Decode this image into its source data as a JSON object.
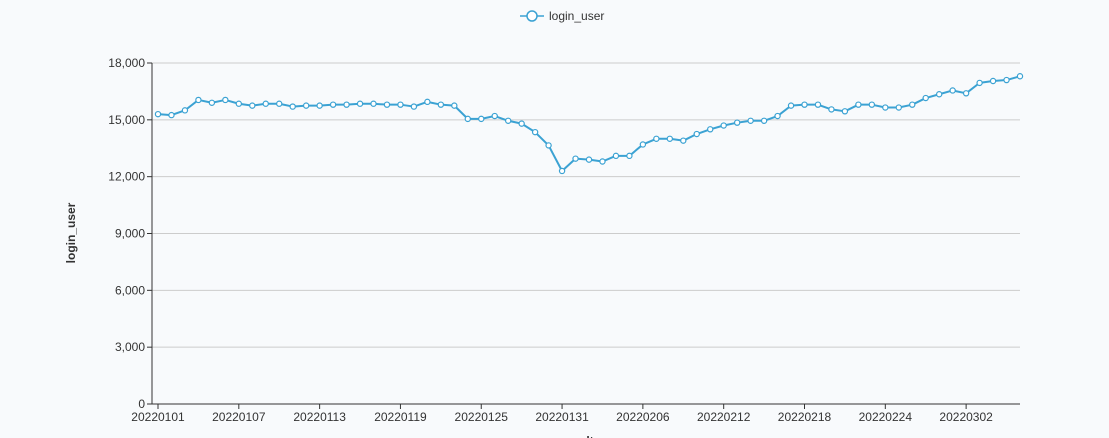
{
  "chart_data": {
    "type": "line",
    "xlabel": "dt",
    "ylabel": "login_user",
    "ylim": [
      0,
      18000
    ],
    "y_ticks": [
      "0",
      "3,000",
      "6,000",
      "9,000",
      "12,000",
      "15,000",
      "18,000"
    ],
    "y_tick_values": [
      0,
      3000,
      6000,
      9000,
      12000,
      15000,
      18000
    ],
    "x_tick_labels": [
      "20220101",
      "20220107",
      "20220113",
      "20220119",
      "20220125",
      "20220131",
      "20220206",
      "20220212",
      "20220218",
      "20220224",
      "20220302"
    ],
    "legend_position": "top-center",
    "grid": true,
    "colors": {
      "series": "#3ba2d3",
      "grid": "#cccccc",
      "axis": "#333333"
    },
    "x": [
      "20220101",
      "20220102",
      "20220103",
      "20220104",
      "20220105",
      "20220106",
      "20220107",
      "20220108",
      "20220109",
      "20220110",
      "20220111",
      "20220112",
      "20220113",
      "20220114",
      "20220115",
      "20220116",
      "20220117",
      "20220118",
      "20220119",
      "20220120",
      "20220121",
      "20220122",
      "20220123",
      "20220124",
      "20220125",
      "20220126",
      "20220127",
      "20220128",
      "20220129",
      "20220130",
      "20220131",
      "20220201",
      "20220202",
      "20220203",
      "20220204",
      "20220205",
      "20220206",
      "20220207",
      "20220208",
      "20220209",
      "20220210",
      "20220211",
      "20220212",
      "20220213",
      "20220214",
      "20220215",
      "20220216",
      "20220217",
      "20220218",
      "20220219",
      "20220220",
      "20220221",
      "20220222",
      "20220223",
      "20220224",
      "20220225",
      "20220226",
      "20220227",
      "20220228",
      "20220301",
      "20220302",
      "20220303",
      "20220304",
      "20220305",
      "20220306"
    ],
    "series": [
      {
        "name": "login_user",
        "values": [
          15300,
          15250,
          15500,
          16050,
          15900,
          16050,
          15850,
          15750,
          15850,
          15850,
          15700,
          15750,
          15750,
          15800,
          15800,
          15850,
          15850,
          15800,
          15800,
          15700,
          15950,
          15800,
          15750,
          15050,
          15050,
          15200,
          14950,
          14800,
          14350,
          13650,
          12300,
          12950,
          12900,
          12800,
          13100,
          13100,
          13700,
          14000,
          14000,
          13900,
          14250,
          14500,
          14700,
          14850,
          14950,
          14950,
          15200,
          15750,
          15800,
          15800,
          15550,
          15450,
          15800,
          15800,
          15650,
          15650,
          15800,
          16150,
          16350,
          16550,
          16400,
          16950,
          17050,
          17100,
          17300
        ]
      }
    ]
  }
}
